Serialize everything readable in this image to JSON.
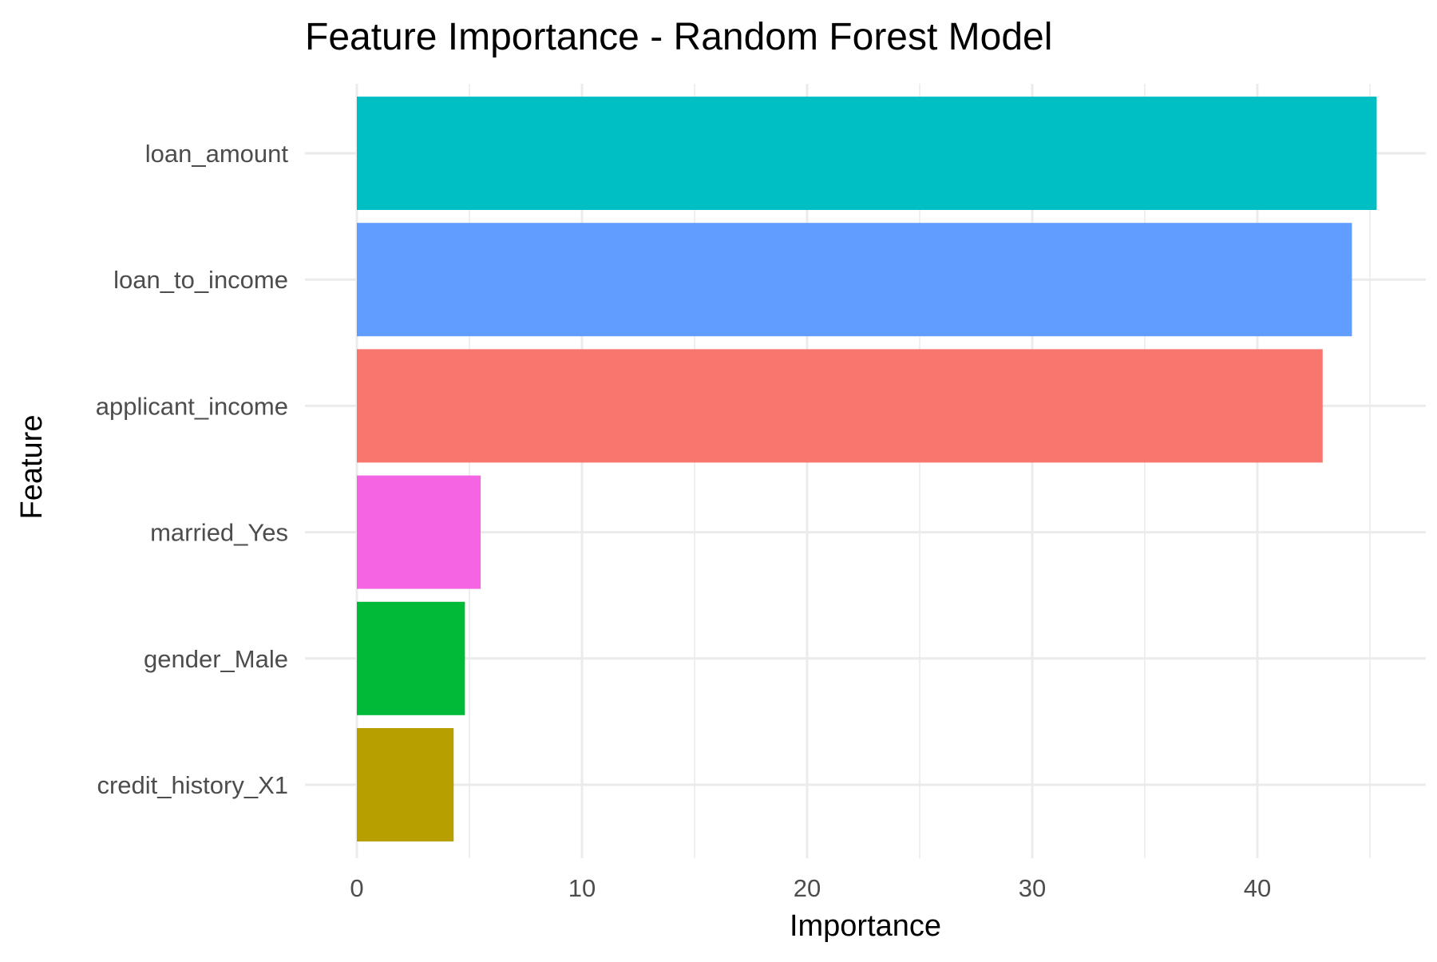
{
  "chart_data": {
    "type": "bar",
    "orientation": "horizontal",
    "title": "Feature Importance - Random Forest Model",
    "xlabel": "Importance",
    "ylabel": "Feature",
    "categories": [
      "loan_amount",
      "loan_to_income",
      "applicant_income",
      "married_Yes",
      "gender_Male",
      "credit_history_X1"
    ],
    "values": [
      45.3,
      44.2,
      42.9,
      5.5,
      4.8,
      4.3
    ],
    "colors": [
      "#00BFC4",
      "#619CFF",
      "#F8766D",
      "#F564E3",
      "#00BA38",
      "#B79F00"
    ],
    "xlim": [
      0,
      47.5
    ],
    "xticks": [
      0,
      10,
      20,
      30,
      40
    ],
    "xtick_labels": [
      "0",
      "10",
      "20",
      "30",
      "40"
    ],
    "grid": true,
    "legend": "none"
  }
}
